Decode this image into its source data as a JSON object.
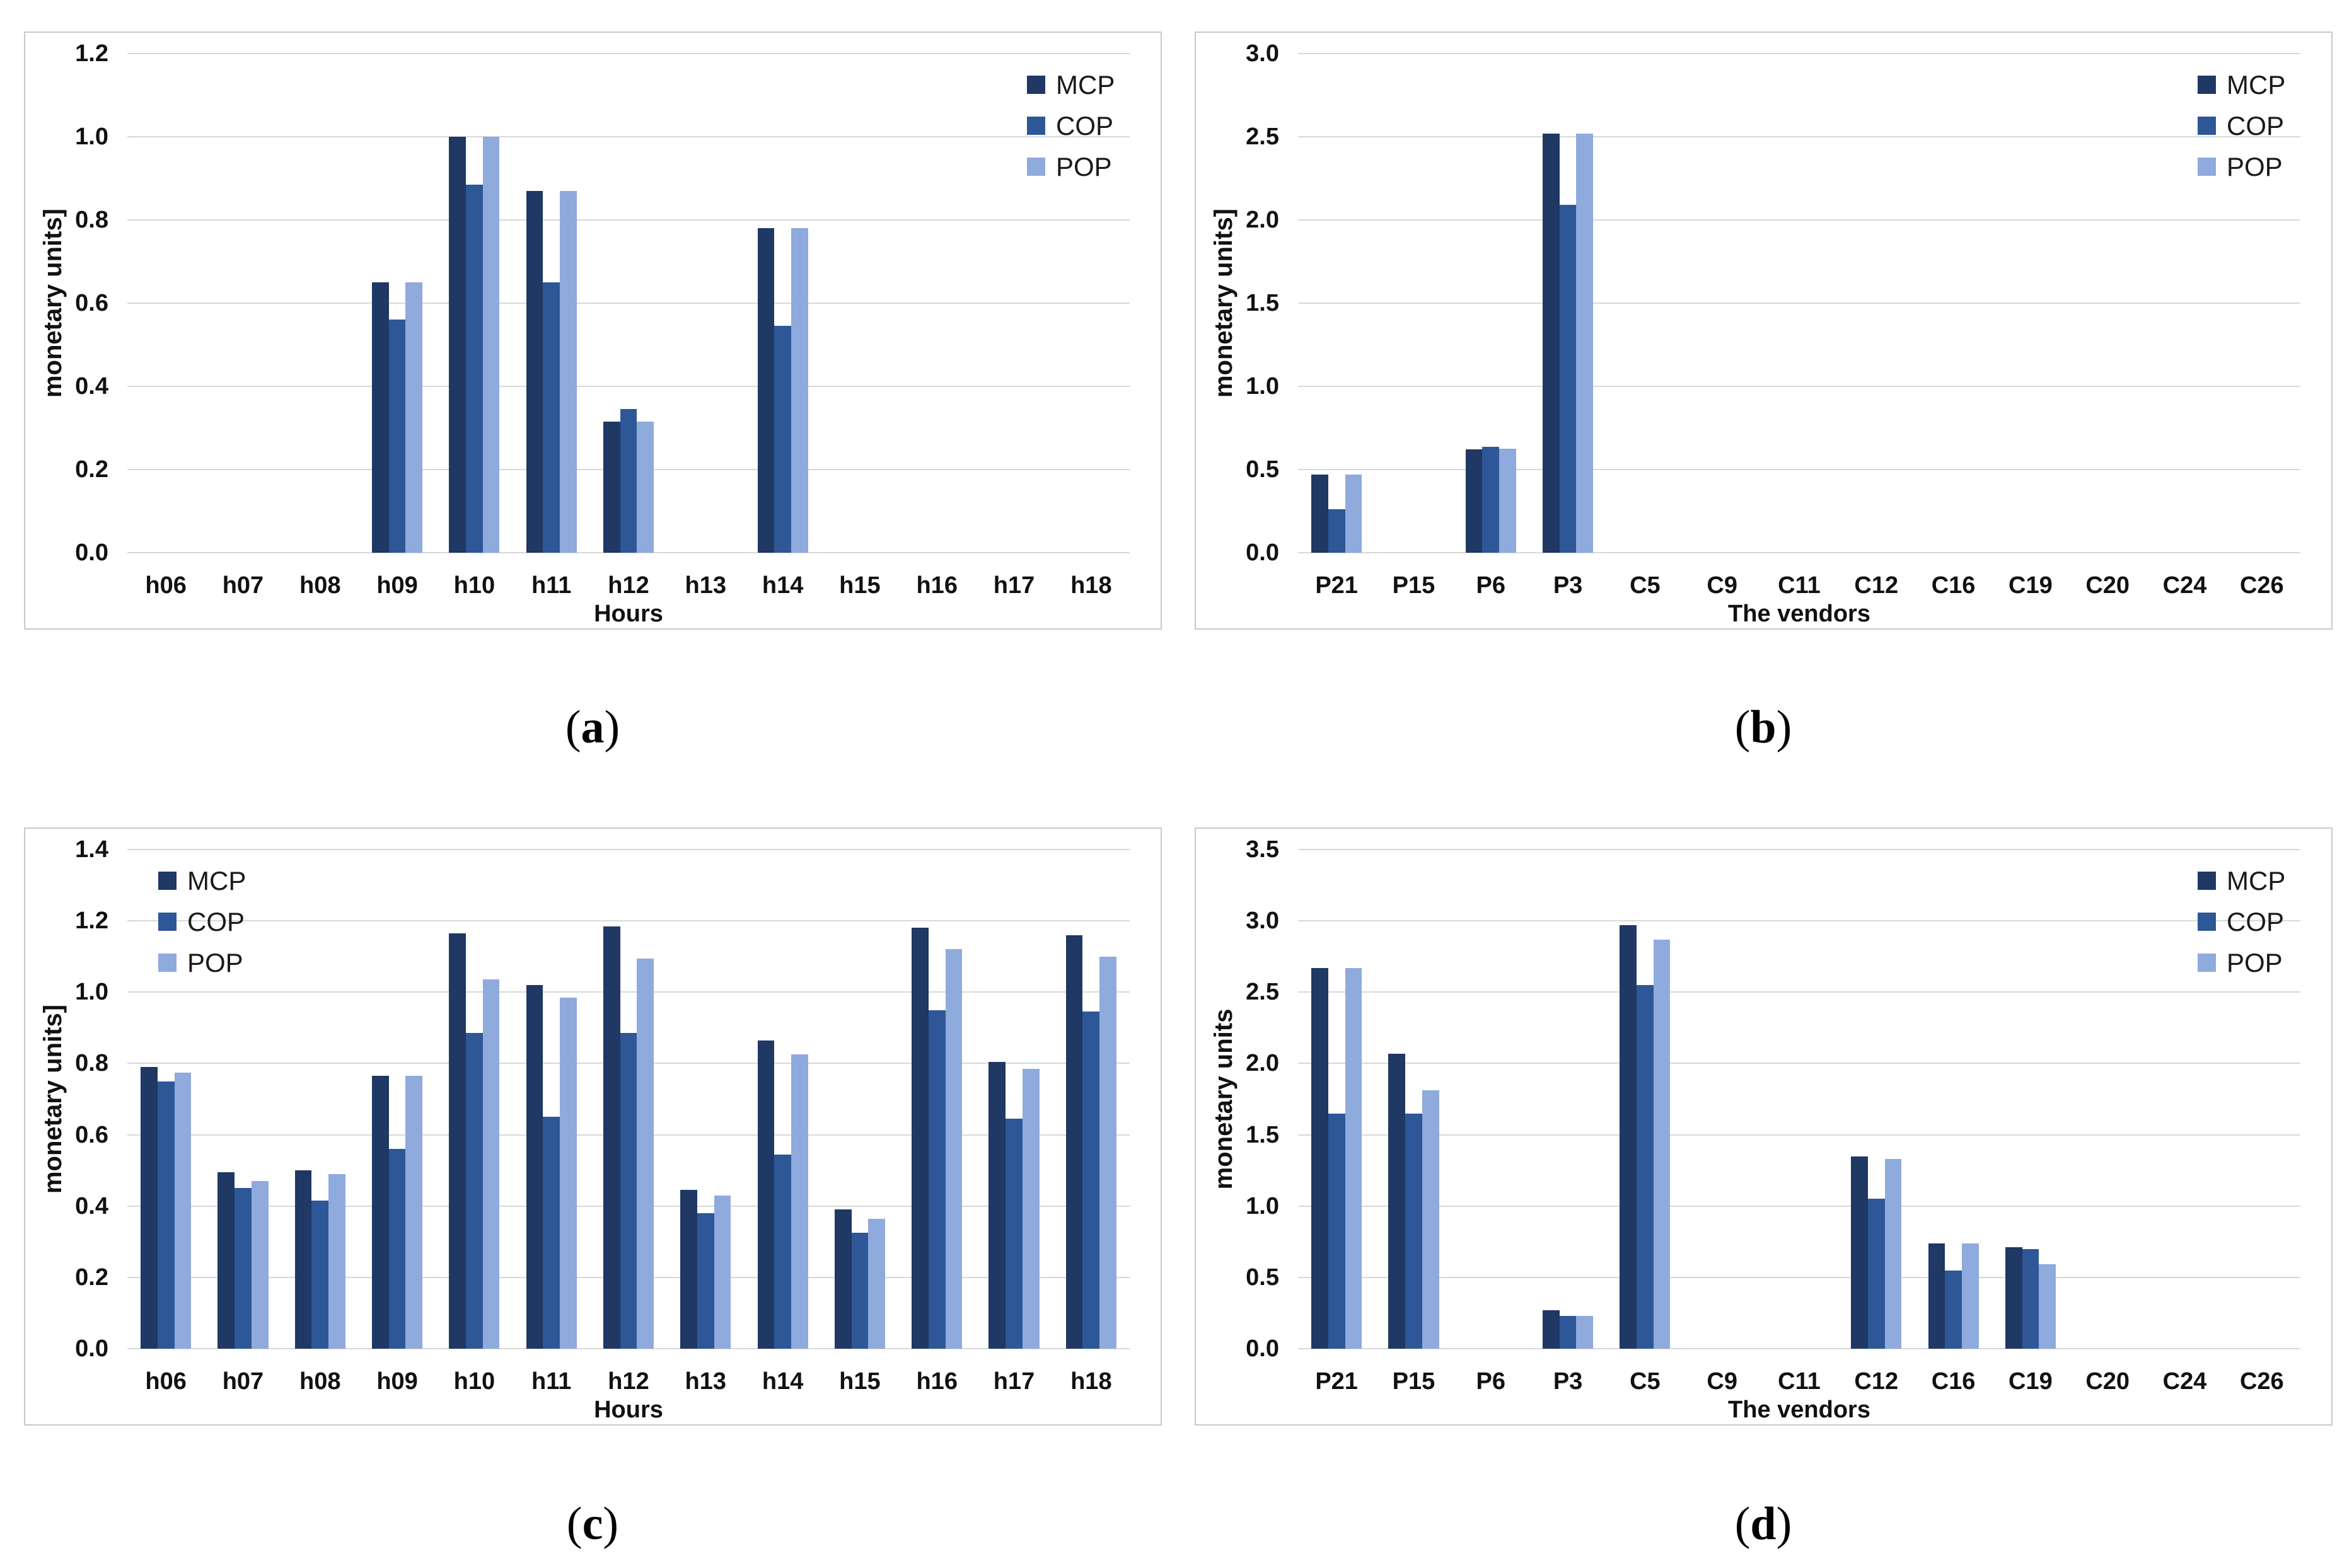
{
  "figure": {
    "background": "#ffffff",
    "grid_color": "#d9d9d9",
    "panel_border_color": "#c9c9c9",
    "series_colors": {
      "MCP": "#1F3864",
      "COP": "#2E5797",
      "POP": "#8FAADC"
    }
  },
  "captions": [
    {
      "open": "(",
      "letter": "a",
      "close": ")"
    },
    {
      "open": "(",
      "letter": "b",
      "close": ")"
    },
    {
      "open": "(",
      "letter": "c",
      "close": ")"
    },
    {
      "open": "(",
      "letter": "d",
      "close": ")"
    }
  ],
  "chart_data": [
    {
      "id": "a",
      "type": "bar",
      "title": "",
      "xlabel": "Hours",
      "ylabel": "monetary units]",
      "ylim": [
        0,
        1.2
      ],
      "ytick_step": 0.2,
      "yticks": [
        "0.0",
        "0.2",
        "0.4",
        "0.6",
        "0.8",
        "1.0",
        "1.2"
      ],
      "grid": true,
      "legend_position": "top-right",
      "categories": [
        "h06",
        "h07",
        "h08",
        "h09",
        "h10",
        "h11",
        "h12",
        "h13",
        "h14",
        "h15",
        "h16",
        "h17",
        "h18"
      ],
      "series": [
        {
          "name": "MCP",
          "color": "#1F3864",
          "values": [
            0,
            0,
            0,
            0.65,
            1.0,
            0.87,
            0.315,
            0,
            0.78,
            0,
            0,
            0,
            0
          ]
        },
        {
          "name": "COP",
          "color": "#2E5797",
          "values": [
            0,
            0,
            0,
            0.56,
            0.885,
            0.65,
            0.345,
            0,
            0.545,
            0,
            0,
            0,
            0
          ]
        },
        {
          "name": "POP",
          "color": "#8FAADC",
          "values": [
            0,
            0,
            0,
            0.65,
            1.0,
            0.87,
            0.315,
            0,
            0.78,
            0,
            0,
            0,
            0
          ]
        }
      ]
    },
    {
      "id": "b",
      "type": "bar",
      "title": "",
      "xlabel": "The vendors",
      "ylabel": "monetary units]",
      "ylim": [
        0,
        3.0
      ],
      "ytick_step": 0.5,
      "yticks": [
        "0.0",
        "0.5",
        "1.0",
        "1.5",
        "2.0",
        "2.5",
        "3.0"
      ],
      "grid": true,
      "legend_position": "top-right",
      "categories": [
        "P21",
        "P15",
        "P6",
        "P3",
        "C5",
        "C9",
        "C11",
        "C12",
        "C16",
        "C19",
        "C20",
        "C24",
        "C26"
      ],
      "series": [
        {
          "name": "MCP",
          "color": "#1F3864",
          "values": [
            0.47,
            0,
            0.62,
            2.52,
            0,
            0,
            0,
            0,
            0,
            0,
            0,
            0,
            0
          ]
        },
        {
          "name": "COP",
          "color": "#2E5797",
          "values": [
            0.26,
            0,
            0.635,
            2.09,
            0,
            0,
            0,
            0,
            0,
            0,
            0,
            0,
            0
          ]
        },
        {
          "name": "POP",
          "color": "#8FAADC",
          "values": [
            0.47,
            0,
            0.625,
            2.52,
            0,
            0,
            0,
            0,
            0,
            0,
            0,
            0,
            0
          ]
        }
      ]
    },
    {
      "id": "c",
      "type": "bar",
      "title": "",
      "xlabel": "Hours",
      "ylabel": "monetary units]",
      "ylim": [
        0,
        1.4
      ],
      "ytick_step": 0.2,
      "yticks": [
        "0.0",
        "0.2",
        "0.4",
        "0.6",
        "0.8",
        "1.0",
        "1.2",
        "1.4"
      ],
      "grid": true,
      "legend_position": "top-left",
      "categories": [
        "h06",
        "h07",
        "h08",
        "h09",
        "h10",
        "h11",
        "h12",
        "h13",
        "h14",
        "h15",
        "h16",
        "h17",
        "h18"
      ],
      "series": [
        {
          "name": "MCP",
          "color": "#1F3864",
          "values": [
            0.79,
            0.495,
            0.5,
            0.765,
            1.165,
            1.02,
            1.185,
            0.445,
            0.865,
            0.39,
            1.18,
            0.805,
            1.16
          ]
        },
        {
          "name": "COP",
          "color": "#2E5797",
          "values": [
            0.75,
            0.45,
            0.415,
            0.56,
            0.885,
            0.65,
            0.885,
            0.38,
            0.545,
            0.325,
            0.95,
            0.645,
            0.945
          ]
        },
        {
          "name": "POP",
          "color": "#8FAADC",
          "values": [
            0.775,
            0.47,
            0.49,
            0.765,
            1.035,
            0.985,
            1.095,
            0.43,
            0.825,
            0.365,
            1.12,
            0.785,
            1.1
          ]
        }
      ]
    },
    {
      "id": "d",
      "type": "bar",
      "title": "",
      "xlabel": "The vendors",
      "ylabel": "monetary units",
      "ylim": [
        0,
        3.5
      ],
      "ytick_step": 0.5,
      "yticks": [
        "0.0",
        "0.5",
        "1.0",
        "1.5",
        "2.0",
        "2.5",
        "3.0",
        "3.5"
      ],
      "grid": true,
      "legend_position": "top-right",
      "categories": [
        "P21",
        "P15",
        "P6",
        "P3",
        "C5",
        "C9",
        "C11",
        "C12",
        "C16",
        "C19",
        "C20",
        "C24",
        "C26"
      ],
      "series": [
        {
          "name": "MCP",
          "color": "#1F3864",
          "values": [
            2.67,
            2.07,
            0,
            0.27,
            2.97,
            0,
            0,
            1.35,
            0.74,
            0.71,
            0,
            0,
            0
          ]
        },
        {
          "name": "COP",
          "color": "#2E5797",
          "values": [
            1.65,
            1.65,
            0,
            0.23,
            2.55,
            0,
            0,
            1.05,
            0.55,
            0.7,
            0,
            0,
            0
          ]
        },
        {
          "name": "POP",
          "color": "#8FAADC",
          "values": [
            2.67,
            1.81,
            0,
            0.23,
            2.87,
            0,
            0,
            1.33,
            0.74,
            0.59,
            0,
            0,
            0
          ]
        }
      ]
    }
  ]
}
